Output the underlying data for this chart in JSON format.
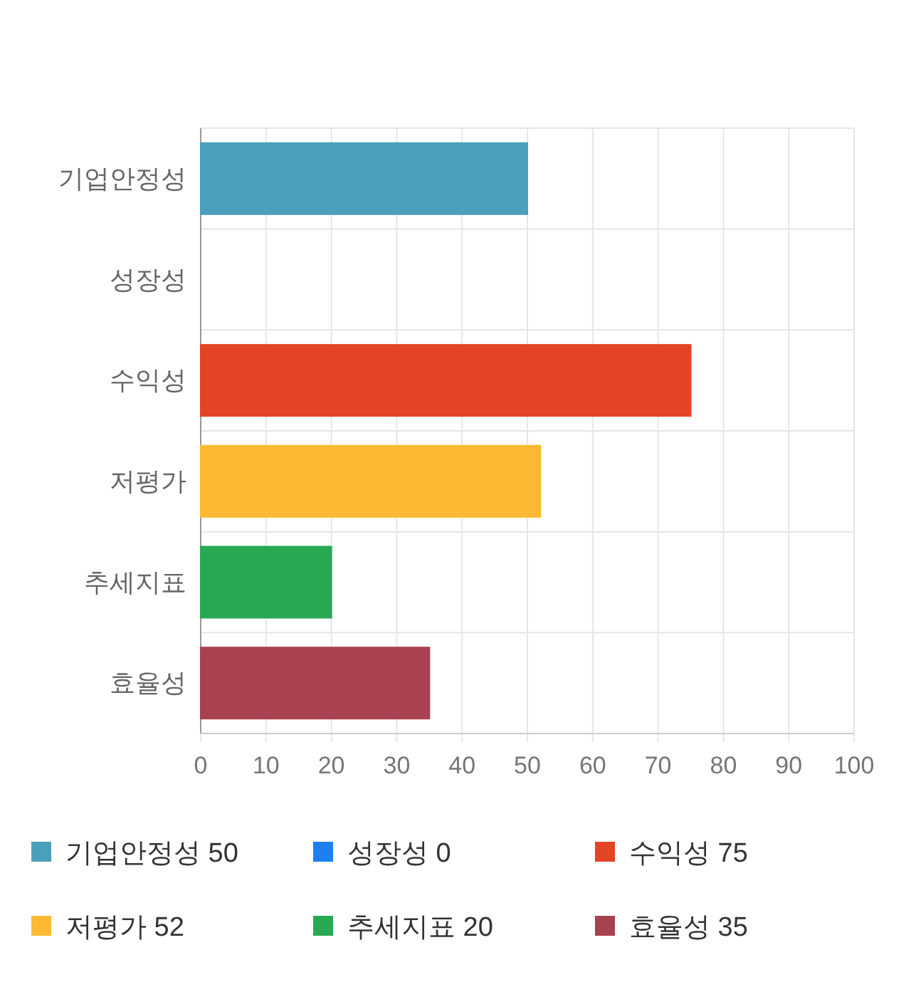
{
  "chart_data": {
    "type": "bar",
    "orientation": "horizontal",
    "categories": [
      "기업안정성",
      "성장성",
      "수익성",
      "저평가",
      "추세지표",
      "효율성"
    ],
    "series": [
      {
        "name": "기업안정성 50",
        "color": "#4aa0bb",
        "values": [
          50,
          null,
          null,
          null,
          null,
          null
        ]
      },
      {
        "name": "성장성 0",
        "color": "#1e7ff0",
        "values": [
          null,
          0,
          null,
          null,
          null,
          null
        ]
      },
      {
        "name": "수익성 75",
        "color": "#e34423",
        "values": [
          null,
          null,
          75,
          null,
          null,
          null
        ]
      },
      {
        "name": "저평가 52",
        "color": "#fdb933",
        "values": [
          null,
          null,
          null,
          52,
          null,
          null
        ]
      },
      {
        "name": "추세지표 20",
        "color": "#29a854",
        "values": [
          null,
          null,
          null,
          null,
          20,
          null
        ]
      },
      {
        "name": "효율성 35",
        "color": "#a84150",
        "values": [
          null,
          null,
          null,
          null,
          null,
          35
        ]
      }
    ],
    "xlim": [
      0,
      100
    ],
    "xticks": [
      0,
      10,
      20,
      30,
      40,
      50,
      60,
      70,
      80,
      90,
      100
    ],
    "grid": true,
    "legend": "bottom"
  }
}
